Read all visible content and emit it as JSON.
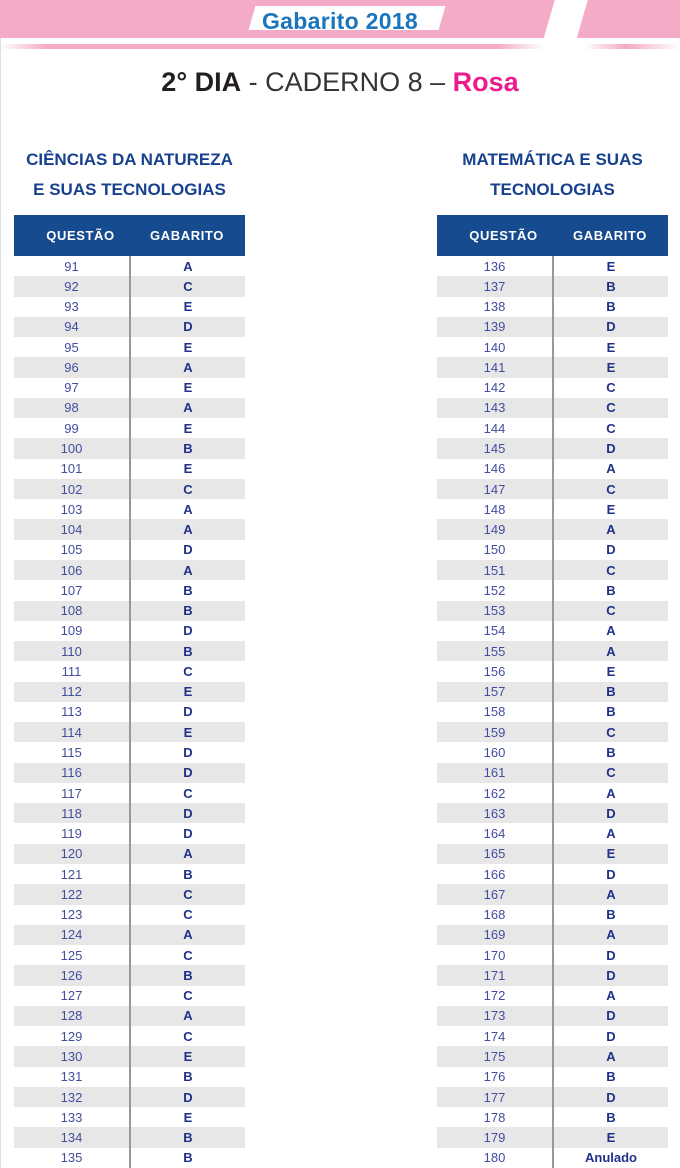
{
  "banner": {
    "title": "Gabarito 2018"
  },
  "page_title": {
    "day": "2° DIA",
    "caderno": " - CADERNO 8 – ",
    "color_name": "Rosa"
  },
  "colors": {
    "banner_pink": "#f4abc8",
    "banner_title_blue": "#1b75bc",
    "highlight_magenta": "#ec1c8d",
    "table_navy": "#164b8f",
    "row_stripe_gray": "#e7e7e7"
  },
  "tables": [
    {
      "title_line1": "CIÊNCIAS DA NATUREZA",
      "title_line2": "E SUAS TECNOLOGIAS",
      "col_question": "QUESTÃO",
      "col_answer": "GABARITO",
      "rows": [
        {
          "q": "91",
          "a": "A"
        },
        {
          "q": "92",
          "a": "C"
        },
        {
          "q": "93",
          "a": "E"
        },
        {
          "q": "94",
          "a": "D"
        },
        {
          "q": "95",
          "a": "E"
        },
        {
          "q": "96",
          "a": "A"
        },
        {
          "q": "97",
          "a": "E"
        },
        {
          "q": "98",
          "a": "A"
        },
        {
          "q": "99",
          "a": "E"
        },
        {
          "q": "100",
          "a": "B"
        },
        {
          "q": "101",
          "a": "E"
        },
        {
          "q": "102",
          "a": "C"
        },
        {
          "q": "103",
          "a": "A"
        },
        {
          "q": "104",
          "a": "A"
        },
        {
          "q": "105",
          "a": "D"
        },
        {
          "q": "106",
          "a": "A"
        },
        {
          "q": "107",
          "a": "B"
        },
        {
          "q": "108",
          "a": "B"
        },
        {
          "q": "109",
          "a": "D"
        },
        {
          "q": "110",
          "a": "B"
        },
        {
          "q": "111",
          "a": "C"
        },
        {
          "q": "112",
          "a": "E"
        },
        {
          "q": "113",
          "a": "D"
        },
        {
          "q": "114",
          "a": "E"
        },
        {
          "q": "115",
          "a": "D"
        },
        {
          "q": "116",
          "a": "D"
        },
        {
          "q": "117",
          "a": "C"
        },
        {
          "q": "118",
          "a": "D"
        },
        {
          "q": "119",
          "a": "D"
        },
        {
          "q": "120",
          "a": "A"
        },
        {
          "q": "121",
          "a": "B"
        },
        {
          "q": "122",
          "a": "C"
        },
        {
          "q": "123",
          "a": "C"
        },
        {
          "q": "124",
          "a": "A"
        },
        {
          "q": "125",
          "a": "C"
        },
        {
          "q": "126",
          "a": "B"
        },
        {
          "q": "127",
          "a": "C"
        },
        {
          "q": "128",
          "a": "A"
        },
        {
          "q": "129",
          "a": "C"
        },
        {
          "q": "130",
          "a": "E"
        },
        {
          "q": "131",
          "a": "B"
        },
        {
          "q": "132",
          "a": "D"
        },
        {
          "q": "133",
          "a": "E"
        },
        {
          "q": "134",
          "a": "B"
        },
        {
          "q": "135",
          "a": "B"
        }
      ]
    },
    {
      "title_line1": "MATEMÁTICA E SUAS",
      "title_line2": "TECNOLOGIAS",
      "col_question": "QUESTÃO",
      "col_answer": "GABARITO",
      "rows": [
        {
          "q": "136",
          "a": "E"
        },
        {
          "q": "137",
          "a": "B"
        },
        {
          "q": "138",
          "a": "B"
        },
        {
          "q": "139",
          "a": "D"
        },
        {
          "q": "140",
          "a": "E"
        },
        {
          "q": "141",
          "a": "E"
        },
        {
          "q": "142",
          "a": "C"
        },
        {
          "q": "143",
          "a": "C"
        },
        {
          "q": "144",
          "a": "C"
        },
        {
          "q": "145",
          "a": "D"
        },
        {
          "q": "146",
          "a": "A"
        },
        {
          "q": "147",
          "a": "C"
        },
        {
          "q": "148",
          "a": "E"
        },
        {
          "q": "149",
          "a": "A"
        },
        {
          "q": "150",
          "a": "D"
        },
        {
          "q": "151",
          "a": "C"
        },
        {
          "q": "152",
          "a": "B"
        },
        {
          "q": "153",
          "a": "C"
        },
        {
          "q": "154",
          "a": "A"
        },
        {
          "q": "155",
          "a": "A"
        },
        {
          "q": "156",
          "a": "E"
        },
        {
          "q": "157",
          "a": "B"
        },
        {
          "q": "158",
          "a": "B"
        },
        {
          "q": "159",
          "a": "C"
        },
        {
          "q": "160",
          "a": "B"
        },
        {
          "q": "161",
          "a": "C"
        },
        {
          "q": "162",
          "a": "A"
        },
        {
          "q": "163",
          "a": "D"
        },
        {
          "q": "164",
          "a": "A"
        },
        {
          "q": "165",
          "a": "E"
        },
        {
          "q": "166",
          "a": "D"
        },
        {
          "q": "167",
          "a": "A"
        },
        {
          "q": "168",
          "a": "B"
        },
        {
          "q": "169",
          "a": "A"
        },
        {
          "q": "170",
          "a": "D"
        },
        {
          "q": "171",
          "a": "D"
        },
        {
          "q": "172",
          "a": "A"
        },
        {
          "q": "173",
          "a": "D"
        },
        {
          "q": "174",
          "a": "D"
        },
        {
          "q": "175",
          "a": "A"
        },
        {
          "q": "176",
          "a": "B"
        },
        {
          "q": "177",
          "a": "D"
        },
        {
          "q": "178",
          "a": "B"
        },
        {
          "q": "179",
          "a": "E"
        },
        {
          "q": "180",
          "a": "Anulado"
        }
      ]
    }
  ]
}
